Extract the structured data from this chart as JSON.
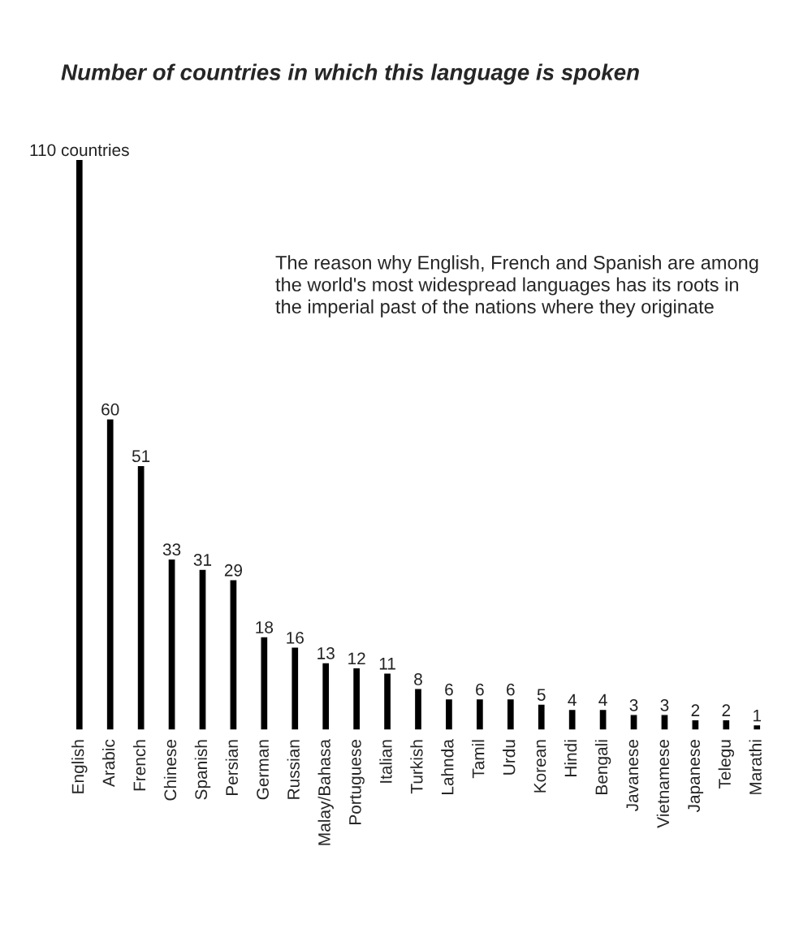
{
  "chart_data": {
    "type": "bar",
    "title": "Number of countries in which this language is spoken",
    "categories": [
      "English",
      "Arabic",
      "French",
      "Chinese",
      "Spanish",
      "Persian",
      "German",
      "Russian",
      "Malay/Bahasa",
      "Portuguese",
      "Italian",
      "Turkish",
      "Lahnda",
      "Tamil",
      "Urdu",
      "Korean",
      "Hindi",
      "Bengali",
      "Javanese",
      "Vietnamese",
      "Japanese",
      "Telegu",
      "Marathi"
    ],
    "values": [
      110,
      60,
      51,
      33,
      31,
      29,
      18,
      16,
      13,
      12,
      11,
      8,
      6,
      6,
      6,
      5,
      4,
      4,
      3,
      3,
      2,
      2,
      1
    ],
    "value_labels": [
      "110 countries",
      "60",
      "51",
      "33",
      "31",
      "29",
      "18",
      "16",
      "13",
      "12",
      "11",
      "8",
      "6",
      "6",
      "6",
      "5",
      "4",
      "4",
      "3",
      "3",
      "2",
      "2",
      "1"
    ],
    "color": "#000000",
    "annotations": [
      "The reason why English, French and Spanish are among the world's most widespread languages has its roots in the imperial past of the nations where they originate"
    ],
    "grid": false,
    "legend": false
  }
}
